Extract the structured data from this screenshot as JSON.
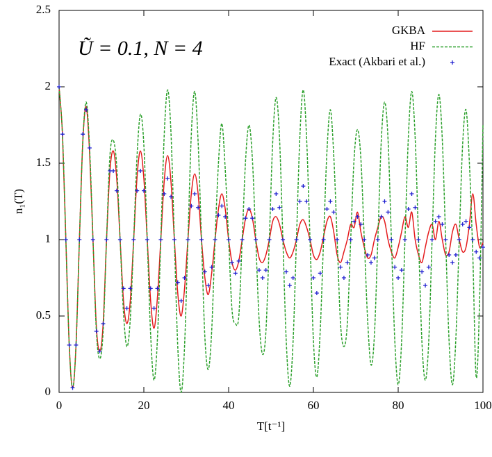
{
  "chart_data": {
    "type": "line",
    "annotation": "Ũ = 0.1, N = 4",
    "xlabel": "T[t⁻¹]",
    "ylabel": "n₁(T)",
    "xlim": [
      0,
      100
    ],
    "ylim": [
      0,
      2.5
    ],
    "xticks": [
      0,
      20,
      40,
      60,
      80,
      100
    ],
    "yticks": [
      0,
      0.5,
      1,
      1.5,
      2,
      2.5
    ],
    "x": [
      0,
      0.8,
      1.6,
      2.4,
      3.2,
      4,
      4.8,
      5.6,
      6.4,
      7.2,
      8,
      8.8,
      9.6,
      10.4,
      11.2,
      12,
      12.8,
      13.6,
      14.4,
      15.2,
      16,
      16.8,
      17.6,
      18.4,
      19.2,
      20,
      20.8,
      21.6,
      22.4,
      23.2,
      24,
      24.8,
      25.6,
      26.4,
      27.2,
      28,
      28.8,
      29.6,
      30.4,
      31.2,
      32,
      32.8,
      33.6,
      34.4,
      35.2,
      36,
      36.8,
      37.6,
      38.4,
      39.2,
      40,
      40.8,
      41.6,
      42.4,
      43.2,
      44,
      44.8,
      45.6,
      46.4,
      47.2,
      48,
      48.8,
      49.6,
      50.4,
      51.2,
      52,
      52.8,
      53.6,
      54.4,
      55.2,
      56,
      56.8,
      57.6,
      58.4,
      59.2,
      60,
      60.8,
      61.6,
      62.4,
      63.2,
      64,
      64.8,
      65.6,
      66.4,
      67.2,
      68,
      68.8,
      69.6,
      70.4,
      71.2,
      72,
      72.8,
      73.6,
      74.4,
      75.2,
      76,
      76.8,
      77.6,
      78.4,
      79.2,
      80,
      80.8,
      81.6,
      82.4,
      83.2,
      84,
      84.8,
      85.6,
      86.4,
      87.2,
      88,
      88.8,
      89.6,
      90.4,
      91.2,
      92,
      92.8,
      93.6,
      94.4,
      95.2,
      96,
      96.8,
      97.6,
      98.4,
      99.2,
      100
    ],
    "series": [
      {
        "name": "GKBA",
        "color": "#e41a1c",
        "style": "solid",
        "values": [
          2.0,
          1.69,
          1,
          0.31,
          0.03,
          0.31,
          1,
          1.64,
          1.87,
          1.57,
          1,
          0.43,
          0.27,
          0.45,
          1,
          1.45,
          1.58,
          1.4,
          1,
          0.6,
          0.45,
          0.6,
          1,
          1.41,
          1.58,
          1.4,
          1,
          0.6,
          0.42,
          0.62,
          1,
          1.38,
          1.55,
          1.38,
          1,
          0.65,
          0.5,
          0.68,
          1,
          1.3,
          1.43,
          1.3,
          1,
          0.75,
          0.64,
          0.78,
          1,
          1.2,
          1.3,
          1.2,
          1,
          0.85,
          0.8,
          0.86,
          1,
          1.14,
          1.2,
          1.14,
          1,
          0.88,
          0.85,
          0.9,
          1,
          1.12,
          1.15,
          1.1,
          1,
          0.92,
          0.88,
          0.92,
          1,
          1.1,
          1.13,
          1.08,
          1,
          0.9,
          0.87,
          0.92,
          1.02,
          1.12,
          1.15,
          1.05,
          0.9,
          0.85,
          0.92,
          1.0,
          1.1,
          1.08,
          1.18,
          1.05,
          0.95,
          0.88,
          0.9,
          1.0,
          1.08,
          1.15,
          1.12,
          1.0,
          0.92,
          0.88,
          0.95,
          1.05,
          1.15,
          1.08,
          1.18,
          1.0,
          0.9,
          0.85,
          0.95,
          1.05,
          1.1,
          1.0,
          1.12,
          1.0,
          0.9,
          0.92,
          1.05,
          1.1,
          1.0,
          0.92,
          0.95,
          1.1,
          1.3,
          1.1,
          0.95,
          0.98
        ]
      },
      {
        "name": "HF",
        "color": "#2ca02c",
        "style": "dashed",
        "values": [
          2.0,
          1.69,
          1,
          0.31,
          0.03,
          0.31,
          1,
          1.64,
          1.9,
          1.6,
          1,
          0.4,
          0.22,
          0.4,
          1,
          1.55,
          1.65,
          1.48,
          1,
          0.52,
          0.3,
          0.48,
          1,
          1.55,
          1.82,
          1.62,
          1,
          0.38,
          0.08,
          0.35,
          1,
          1.68,
          1.98,
          1.7,
          1,
          0.3,
          0.0,
          0.3,
          1,
          1.69,
          1.97,
          1.64,
          1,
          0.36,
          0.15,
          0.4,
          1,
          1.5,
          1.76,
          1.46,
          1,
          0.54,
          0.45,
          0.5,
          1,
          1.52,
          1.75,
          1.53,
          1,
          0.47,
          0.25,
          0.4,
          1,
          1.64,
          1.93,
          1.67,
          1,
          0.33,
          0.04,
          0.33,
          1,
          1.67,
          1.98,
          1.66,
          1,
          0.34,
          0.1,
          0.4,
          1,
          1.58,
          1.85,
          1.55,
          1,
          0.45,
          0.3,
          0.45,
          1,
          1.53,
          1.72,
          1.53,
          1,
          0.47,
          0.18,
          0.38,
          1,
          1.64,
          1.9,
          1.66,
          1,
          0.34,
          0.05,
          0.33,
          1,
          1.67,
          1.97,
          1.67,
          1,
          0.33,
          0.08,
          0.33,
          1,
          1.67,
          1.95,
          1.66,
          1,
          0.34,
          0.05,
          0.35,
          1,
          1.62,
          1.85,
          1.5,
          0.9,
          0.1,
          0.6,
          1.75
        ]
      },
      {
        "name": "Exact (Akbari et al.)",
        "color": "#1f1fd0",
        "style": "plus",
        "values": [
          2.0,
          1.69,
          1,
          0.31,
          0.03,
          0.31,
          1,
          1.69,
          1.85,
          1.6,
          1,
          0.4,
          0.27,
          0.45,
          1,
          1.45,
          1.45,
          1.32,
          1,
          0.68,
          0.55,
          0.68,
          1,
          1.32,
          1.45,
          1.32,
          1,
          0.68,
          0.55,
          0.68,
          1,
          1.3,
          1.4,
          1.28,
          1,
          0.72,
          0.6,
          0.75,
          1,
          1.22,
          1.3,
          1.21,
          1,
          0.79,
          0.7,
          0.82,
          1,
          1.16,
          1.22,
          1.15,
          1,
          0.85,
          0.78,
          0.86,
          1,
          1.14,
          1.2,
          1.14,
          1,
          0.8,
          0.75,
          0.8,
          1,
          1.2,
          1.3,
          1.21,
          1,
          0.79,
          0.7,
          0.75,
          1,
          1.25,
          1.35,
          1.25,
          1,
          0.75,
          0.65,
          0.78,
          1,
          1.2,
          1.25,
          1.18,
          1,
          0.82,
          0.75,
          0.85,
          1,
          1.12,
          1.15,
          1.1,
          1,
          0.9,
          0.85,
          0.88,
          1,
          1.15,
          1.25,
          1.18,
          1,
          0.82,
          0.75,
          0.8,
          1,
          1.2,
          1.3,
          1.21,
          1,
          0.79,
          0.7,
          0.82,
          1,
          1.12,
          1.15,
          1.1,
          1,
          0.9,
          0.85,
          0.9,
          1,
          1.1,
          1.12,
          1.08,
          1,
          0.92,
          0.88,
          0.95
        ]
      }
    ]
  }
}
